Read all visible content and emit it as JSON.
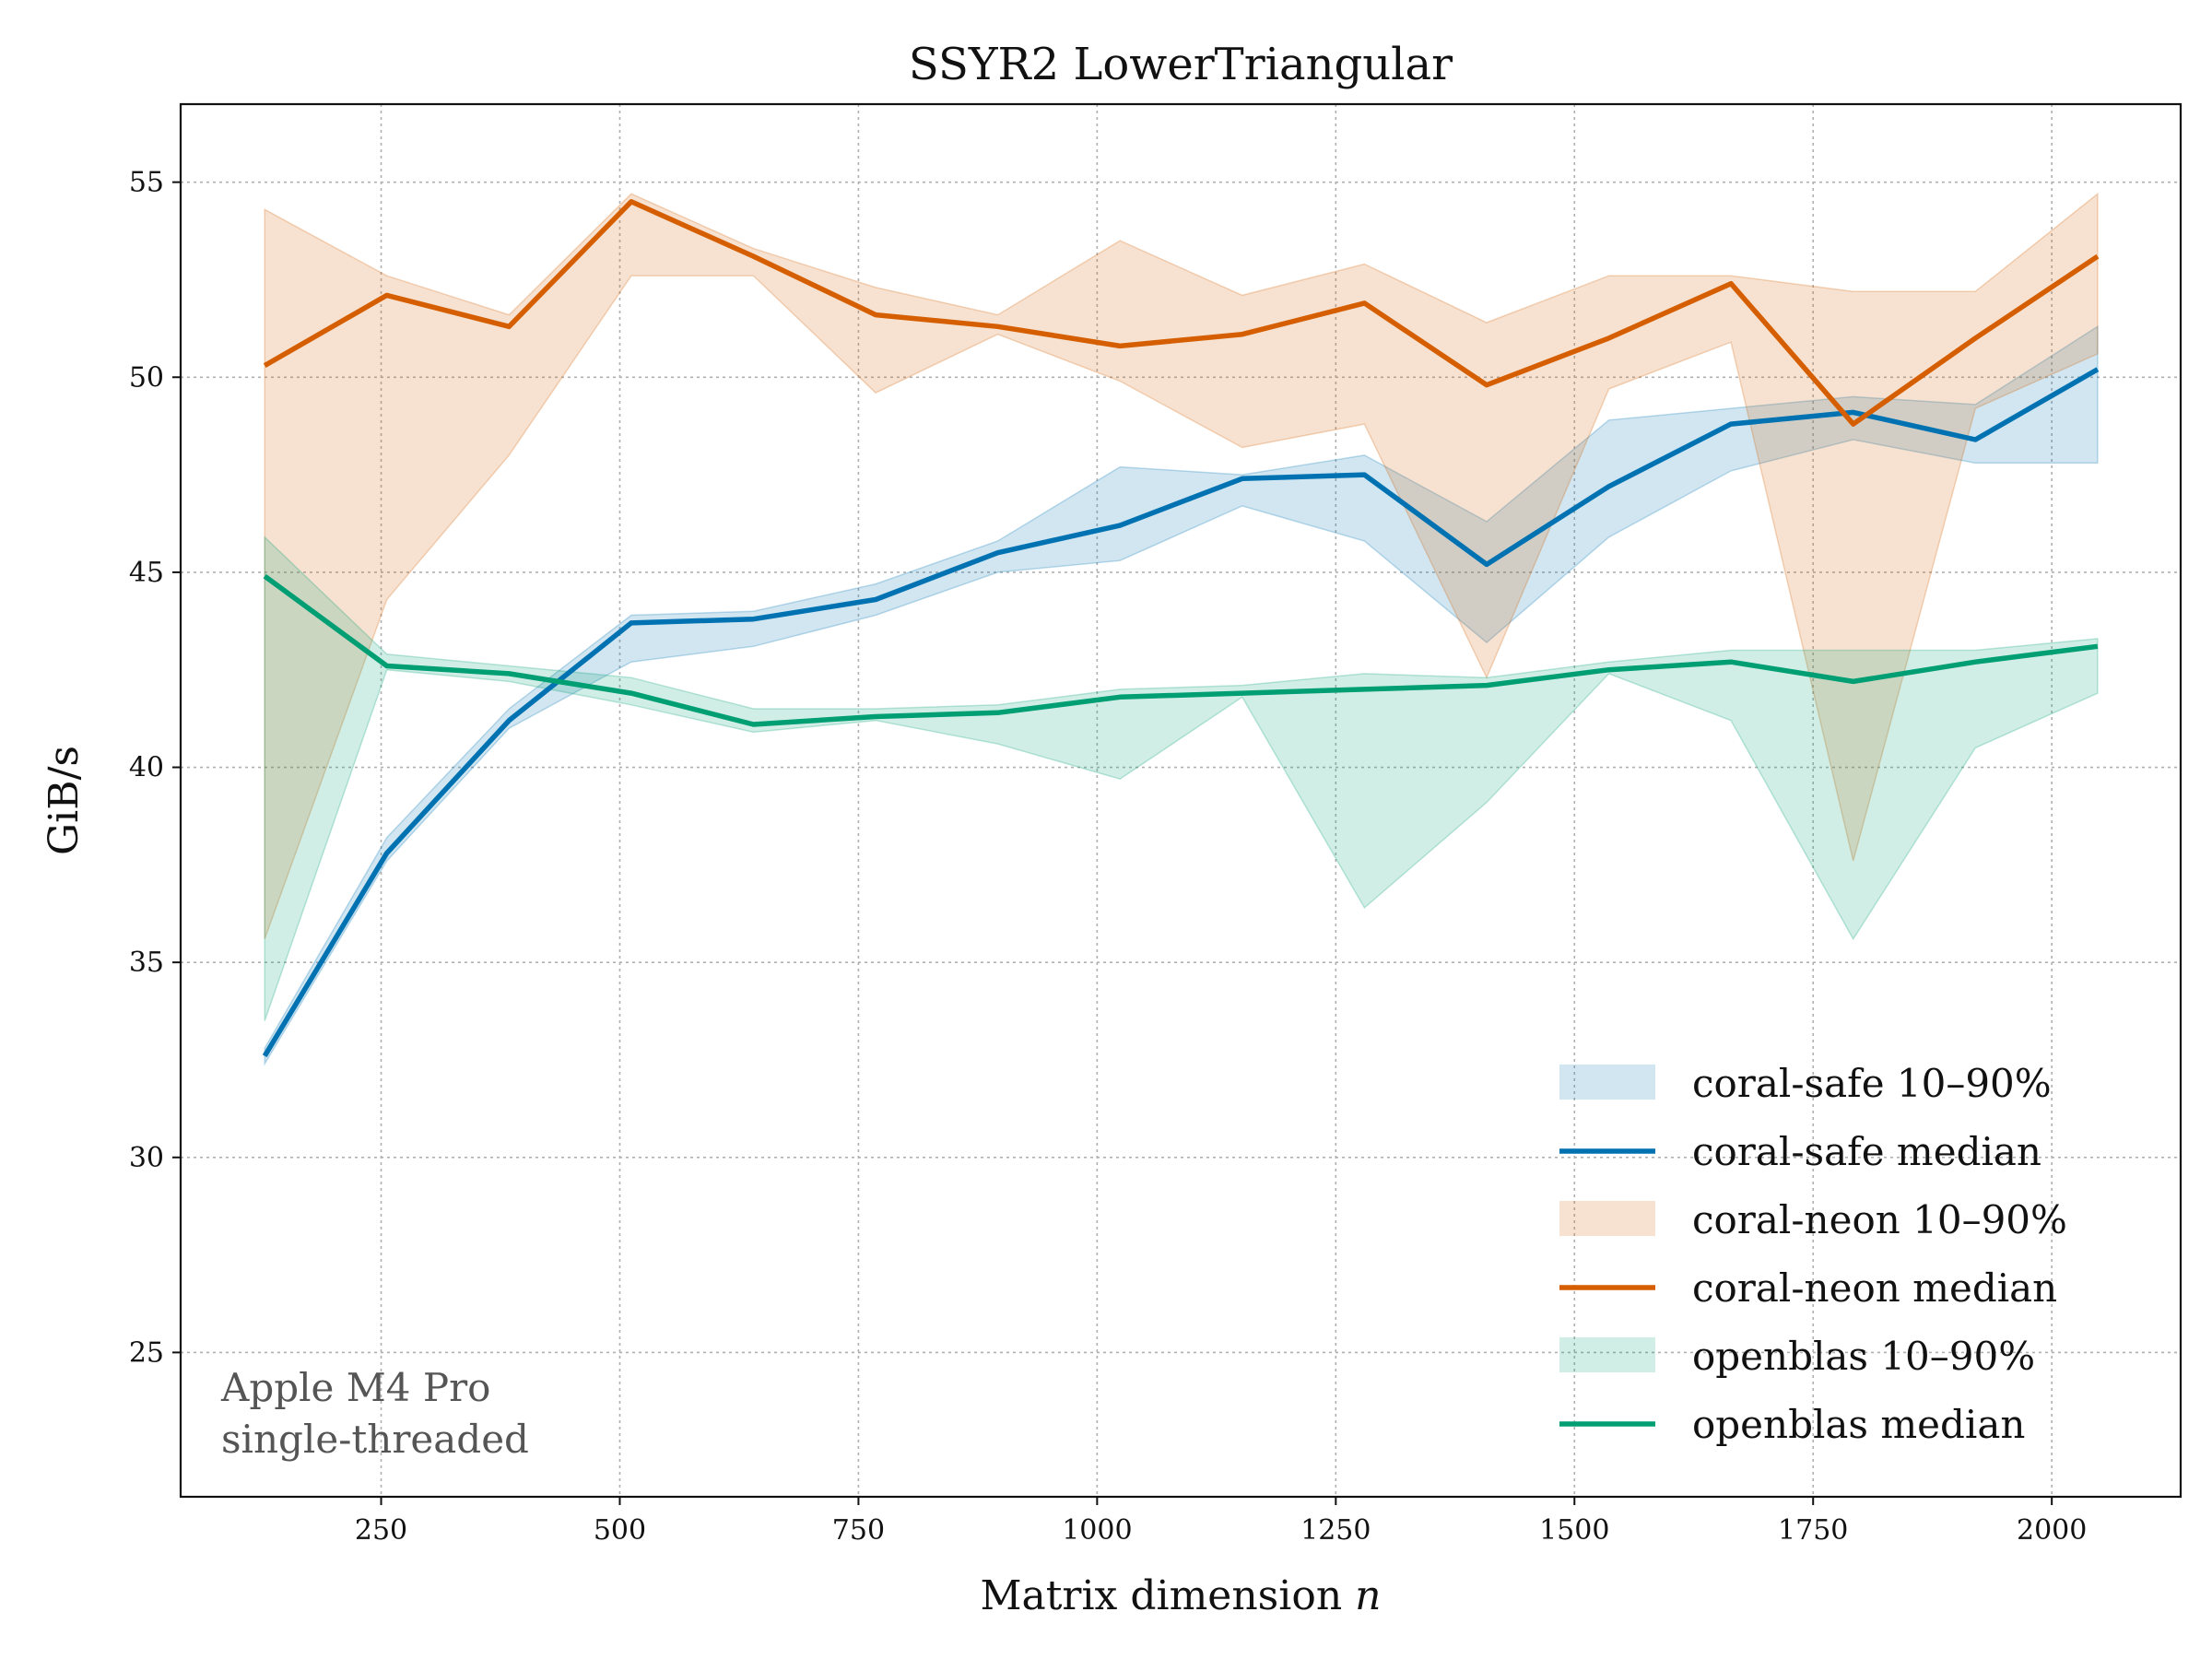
{
  "chart_data": {
    "type": "line",
    "title": "SSYR2 LowerTriangular",
    "xlabel": "Matrix dimension",
    "xlabel_var": "n",
    "ylabel": "GiB/s",
    "xlim": [
      40,
      2135
    ],
    "ylim": [
      21.3,
      57
    ],
    "xticks": [
      250,
      500,
      750,
      1000,
      1250,
      1500,
      1750,
      2000
    ],
    "yticks": [
      25,
      30,
      35,
      40,
      45,
      50,
      55
    ],
    "grid": true,
    "legend_position": "lower-right",
    "x": [
      128,
      256,
      384,
      512,
      640,
      768,
      896,
      1024,
      1152,
      1280,
      1408,
      1536,
      1664,
      1792,
      1920,
      2048
    ],
    "series": [
      {
        "name": "coral-safe median",
        "band_name": "coral-safe 10–90%",
        "color": "#0072b2",
        "median": [
          32.6,
          37.8,
          41.2,
          43.7,
          43.8,
          44.3,
          45.5,
          46.2,
          47.4,
          47.5,
          45.2,
          47.2,
          48.8,
          49.1,
          48.4,
          50.2
        ],
        "p10": [
          32.4,
          37.6,
          41.0,
          42.7,
          43.1,
          43.9,
          45.0,
          45.3,
          46.7,
          45.8,
          43.2,
          45.9,
          47.6,
          48.4,
          47.8,
          47.8
        ],
        "p90": [
          32.8,
          38.2,
          41.5,
          43.9,
          44.0,
          44.7,
          45.8,
          47.7,
          47.5,
          48.0,
          46.3,
          48.9,
          49.2,
          49.5,
          49.3,
          51.3
        ]
      },
      {
        "name": "coral-neon median",
        "band_name": "coral-neon 10–90%",
        "color": "#d55e00",
        "median": [
          50.3,
          52.1,
          51.3,
          54.5,
          53.1,
          51.6,
          51.3,
          50.8,
          51.1,
          51.9,
          49.8,
          51.0,
          52.4,
          48.8,
          51.0,
          53.1
        ],
        "p10": [
          35.6,
          44.3,
          48.0,
          52.6,
          52.6,
          49.6,
          51.1,
          49.9,
          48.2,
          48.8,
          42.3,
          49.7,
          50.9,
          37.6,
          49.2,
          50.6
        ],
        "p90": [
          54.3,
          52.6,
          51.6,
          54.7,
          53.3,
          52.3,
          51.6,
          53.5,
          52.1,
          52.9,
          51.4,
          52.6,
          52.6,
          52.2,
          52.2,
          54.7
        ]
      },
      {
        "name": "openblas median",
        "band_name": "openblas 10–90%",
        "color": "#009e73",
        "median": [
          44.9,
          42.6,
          42.4,
          41.9,
          41.1,
          41.3,
          41.4,
          41.8,
          41.9,
          42.0,
          42.1,
          42.5,
          42.7,
          42.2,
          42.7,
          43.1
        ],
        "p10": [
          33.5,
          42.5,
          42.2,
          41.6,
          40.9,
          41.2,
          40.6,
          39.7,
          41.8,
          36.4,
          39.1,
          42.4,
          41.2,
          35.6,
          40.5,
          41.9
        ],
        "p90": [
          45.9,
          42.9,
          42.6,
          42.3,
          41.5,
          41.5,
          41.6,
          42.0,
          42.1,
          42.4,
          42.3,
          42.7,
          43.0,
          43.0,
          43.0,
          43.3
        ]
      }
    ],
    "annotation_lines": [
      "Apple M4 Pro",
      "single-threaded"
    ]
  }
}
